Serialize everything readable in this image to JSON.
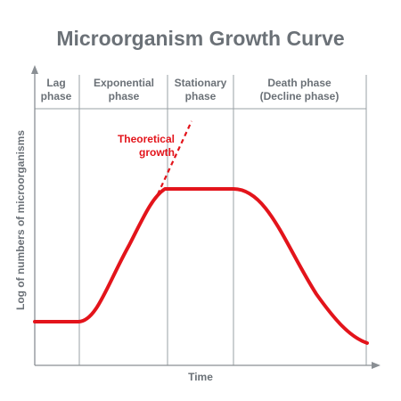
{
  "title": "Microorganism Growth Curve",
  "phases": [
    {
      "line1": "Lag",
      "line2": "phase"
    },
    {
      "line1": "Exponential",
      "line2": "phase"
    },
    {
      "line1": "Stationary",
      "line2": "phase"
    },
    {
      "line1": "Death phase",
      "line2": "(Decline phase)"
    }
  ],
  "theoretical": {
    "line1": "Theoretical",
    "line2": "growth"
  },
  "xlabel": "Time",
  "ylabel": "Log of numbers of microorganisms",
  "colors": {
    "curve": "#e3141b",
    "text": "#6b7177",
    "axis": "#8a8f94",
    "grid": "#9aa0a5"
  }
}
